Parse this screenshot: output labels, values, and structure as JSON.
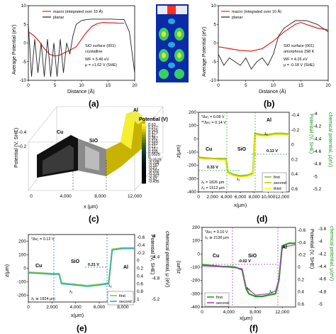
{
  "chart_data": [
    {
      "panel": "(a)",
      "type": "line",
      "xlabel": "Distance (Å)",
      "ylabel": "Average Potential (eV)",
      "xlim": [
        0,
        20
      ],
      "ylim": [
        -10,
        10
      ],
      "xticks": [
        "0",
        "5",
        "10",
        "15",
        "20"
      ],
      "yticks": [
        "-10",
        "-5",
        "0",
        "5",
        "10"
      ],
      "series": [
        {
          "name": "macro (integrated over 10 Å)",
          "color": "#e02020",
          "x": [
            0,
            1,
            2,
            3,
            4,
            5,
            6,
            7,
            8,
            9,
            10,
            11,
            12,
            13,
            14,
            15,
            16,
            17,
            18
          ],
          "y": [
            3,
            2,
            0.5,
            -1.5,
            -3,
            -3.5,
            -3.2,
            -2.5,
            -1.8,
            -1,
            1,
            3,
            4.5,
            5.2,
            5.5,
            5.4,
            5.4,
            5.3,
            5.3
          ]
        },
        {
          "name": "planar",
          "color": "#222222",
          "x": [
            0,
            0.6,
            1.2,
            1.8,
            2.4,
            3,
            3.6,
            4.2,
            4.8,
            5.4,
            6,
            6.6,
            7.2,
            7.8,
            8.4,
            9,
            10,
            11,
            12,
            13,
            14,
            15,
            16,
            17,
            18,
            19,
            20
          ],
          "y": [
            5,
            -9,
            1,
            -8,
            0,
            -9,
            1,
            -9,
            0,
            -9,
            1,
            -8,
            0,
            -3,
            2,
            5,
            6,
            6.3,
            6.4,
            6.4,
            6.4,
            6.4,
            6.4,
            6.3,
            6.3,
            3,
            -8
          ]
        }
      ],
      "annotations": [
        "SiO surface (001)",
        "crystalline",
        "WF = 5.46 eV",
        "μ = +1.02 V (SHE)"
      ]
    },
    {
      "panel": "(b)",
      "type": "line",
      "xlabel": "Distance (Å)",
      "ylabel": "Average Potential (eV)",
      "xlim": [
        0,
        20
      ],
      "ylim": [
        -10,
        10
      ],
      "xticks": [
        "0",
        "5",
        "10",
        "15",
        "20"
      ],
      "yticks": [
        "-10",
        "-5",
        "0",
        "5",
        "10"
      ],
      "series": [
        {
          "name": "macro (integrated over 10 Å)",
          "color": "#e02020",
          "x": [
            0,
            2,
            4,
            6,
            8,
            10,
            12,
            14,
            15,
            16,
            18,
            20
          ],
          "y": [
            -1,
            -1.5,
            -2,
            -2.2,
            -1.5,
            0.5,
            3,
            5,
            5.5,
            5,
            4,
            3.5
          ]
        },
        {
          "name": "planar",
          "color": "#222222",
          "x": [
            0,
            1,
            2,
            3,
            4,
            5,
            6,
            7,
            8,
            9,
            10,
            11,
            12,
            13,
            14,
            15,
            16,
            17,
            18,
            19,
            20
          ],
          "y": [
            -3,
            -6,
            -4,
            -5,
            -6,
            -4,
            -7,
            -5,
            -4,
            -6,
            -3,
            2,
            4,
            5,
            6,
            6,
            6,
            5.5,
            5,
            4,
            3
          ]
        }
      ],
      "annotations": [
        "SiO surface (001)",
        "amorphous 298 K",
        "WF = 4.26 eV",
        "μ = -0.18 V (SHE)"
      ]
    },
    {
      "panel": "(c)",
      "type": "heatmap",
      "xlabel": "x (μm)",
      "ylabel": "Potential (V, SHE)",
      "xticks": [
        "0",
        "4,000",
        "8,000",
        "12,000"
      ],
      "zticks": [
        "-0.4",
        "-0.2"
      ],
      "colorbar_title": "Potential (V)",
      "colorbar_values": [
        "0.63",
        "0.577",
        "0.525",
        "0.473",
        "0.42",
        "0.367",
        "0.315",
        "0.262",
        "0.21",
        "0.157",
        "0.105",
        "0.0525",
        "0",
        "-0.0525",
        "-0.105",
        "-0.157",
        "-0.21",
        "-0.262",
        "-0.315",
        "-0.367",
        "-0.42",
        "-0.435"
      ],
      "region_labels": [
        "Cu",
        "SiO",
        "Al"
      ]
    },
    {
      "panel": "(d)",
      "type": "line",
      "xlabel": "x(μm)",
      "ylabel": "z(μm)",
      "y2label": "Potential (V, SHE)",
      "y3label": "chemical potential, μ(eV)",
      "xlim": [
        0,
        13000
      ],
      "ylim": [
        -400,
        200
      ],
      "xticks": [
        "0",
        "2,000",
        "4,000",
        "6,000",
        "8,000",
        "10,000",
        "12,000"
      ],
      "yticks": [
        "200",
        "100",
        "0",
        "-100",
        "-200",
        "-300",
        "-400"
      ],
      "y2ticks": [
        "-0.4",
        "-0.2",
        "0",
        "0.2",
        "0.4",
        "0.6"
      ],
      "y3ticks": [
        "-4",
        "-4.2",
        "-4.4",
        "-4.6",
        "-4.8",
        "-5",
        "-5.2"
      ],
      "series": [
        {
          "name": "first",
          "color": "#8bc53f",
          "x": [
            0,
            1000,
            2000,
            3000,
            3900,
            4200,
            5000,
            6000,
            7000,
            7800,
            8100,
            9000,
            10000,
            11000,
            12000,
            13000
          ],
          "y": [
            -140,
            -145,
            -150,
            -150,
            -150,
            -250,
            -270,
            -280,
            -275,
            -260,
            40,
            30,
            30,
            40,
            40,
            35
          ]
        },
        {
          "name": "second",
          "color": "#c8c800",
          "x": [
            0,
            1000,
            2000,
            3000,
            3900,
            4200,
            5000,
            6000,
            7000,
            7800,
            8100,
            9000,
            10000,
            11000,
            12000,
            13000
          ],
          "y": [
            -145,
            -150,
            -150,
            -155,
            -155,
            -255,
            -275,
            -285,
            -280,
            -265,
            35,
            25,
            25,
            35,
            35,
            30
          ]
        },
        {
          "name": "third",
          "color": "#ffff00",
          "x": [
            0,
            1000,
            2000,
            3000,
            3900,
            4200,
            5000,
            6000,
            7000,
            7800,
            8100,
            9000,
            10000,
            11000,
            12000,
            13000
          ],
          "y": [
            -150,
            -155,
            -155,
            -160,
            -160,
            -260,
            -280,
            -290,
            -285,
            -270,
            30,
            20,
            20,
            30,
            30,
            25
          ]
        }
      ],
      "annotations": [
        "*Δv₁ = 0.08 V",
        "**Δv₂ = 0.14 V",
        "λ₁ = 1826 μm",
        "λ₂ = 1512 μm",
        "0.33 V",
        "0.13 V",
        "λ₁",
        "λ₂"
      ],
      "region_labels": [
        "Cu",
        "SiO",
        "Al"
      ]
    },
    {
      "panel": "(e)",
      "type": "line",
      "xlabel": "x(μm)",
      "ylabel": "z(μm)",
      "y2label": "Potential (V, SHE)",
      "y3label": "chemical potential, μ (eV)",
      "xlim": [
        0,
        9000
      ],
      "ylim": [
        -250,
        250
      ],
      "xticks": [
        "0",
        "2,000",
        "4,000",
        "6,000",
        "8,000"
      ],
      "yticks": [
        "200",
        "100",
        "0",
        "-100",
        "-200"
      ],
      "y2ticks": [
        "-0.6",
        "-0.4",
        "-0.2",
        "0",
        "0.2",
        "0.4",
        "0.6",
        "0.8",
        "1"
      ],
      "y3ticks": [
        "-4",
        "-4.4",
        "-4.8",
        "-5.2"
      ],
      "series": [
        {
          "name": "first",
          "color": "#8bc53f",
          "x": [
            0,
            1000,
            2000,
            2600,
            2800,
            4000,
            5000,
            6000,
            6800,
            7100,
            8000,
            9000
          ],
          "y": [
            -30,
            -35,
            -40,
            -40,
            -110,
            -120,
            -130,
            -120,
            -110,
            140,
            150,
            150
          ]
        },
        {
          "name": "second",
          "color": "#20b0c0",
          "x": [
            0,
            1000,
            2000,
            2600,
            2800,
            4000,
            5000,
            6000,
            6800,
            7100,
            8000,
            9000
          ],
          "y": [
            -35,
            -40,
            -45,
            -45,
            -115,
            -125,
            -135,
            -125,
            -115,
            135,
            145,
            145
          ]
        }
      ],
      "annotations": [
        "*Δv₁ = 0.12 V",
        "λ₁ ≅ 1824 μm",
        "0.21 V",
        "λ₁",
        "λ₂"
      ],
      "region_labels": [
        "Cu",
        "SiO",
        "Al"
      ]
    },
    {
      "panel": "(f)",
      "type": "line",
      "xlabel": "x(μm)",
      "ylabel": "z(μm)",
      "y2label": "Potential (V, SHE)",
      "y3label": "chemical potential, μ(eV)",
      "xlim": [
        0,
        14000
      ],
      "ylim": [
        -400,
        200
      ],
      "xticks": [
        "0",
        "4,000",
        "8,000",
        "12,000"
      ],
      "yticks": [
        "200",
        "100",
        "0",
        "-100",
        "-200",
        "-300",
        "-400"
      ],
      "y2ticks": [
        "-0.6",
        "-0.4",
        "-0.2",
        "0",
        "0.2",
        "0.4",
        "0.6"
      ],
      "y3ticks": [
        "-3.8",
        "-4",
        "-4.2",
        "-4.4",
        "-4.6",
        "-4.8",
        "-5"
      ],
      "series": [
        {
          "name": "first",
          "color": "#20a020",
          "x": [
            0,
            1000,
            2000,
            3000,
            4000,
            5000,
            6000,
            6600,
            7000,
            8000,
            9000,
            10000,
            11000,
            11500,
            12000,
            13000,
            14000
          ],
          "y": [
            -80,
            -85,
            -90,
            -95,
            -95,
            -100,
            -120,
            -260,
            -300,
            -320,
            -320,
            -310,
            -300,
            -200,
            60,
            80,
            80
          ]
        },
        {
          "name": "second",
          "color": "#b040c0",
          "x": [
            0,
            2000,
            4000,
            6000,
            6600,
            8000,
            10000,
            11000,
            11500,
            12000,
            14000
          ],
          "y": [
            -90,
            -95,
            -100,
            -110,
            -250,
            -310,
            -300,
            -280,
            -190,
            50,
            70
          ]
        }
      ],
      "annotations": [
        "*Δv₁ = 0.10 V",
        "λ₁ ≅ 2136 μm",
        "-0.02 V",
        "λ₁",
        "λ₂"
      ],
      "region_labels": [
        "Cu",
        "SiO",
        "Al"
      ]
    }
  ],
  "panel_labels": [
    "(a)",
    "(b)",
    "(c)",
    "(d)",
    "(e)",
    "(f)"
  ]
}
